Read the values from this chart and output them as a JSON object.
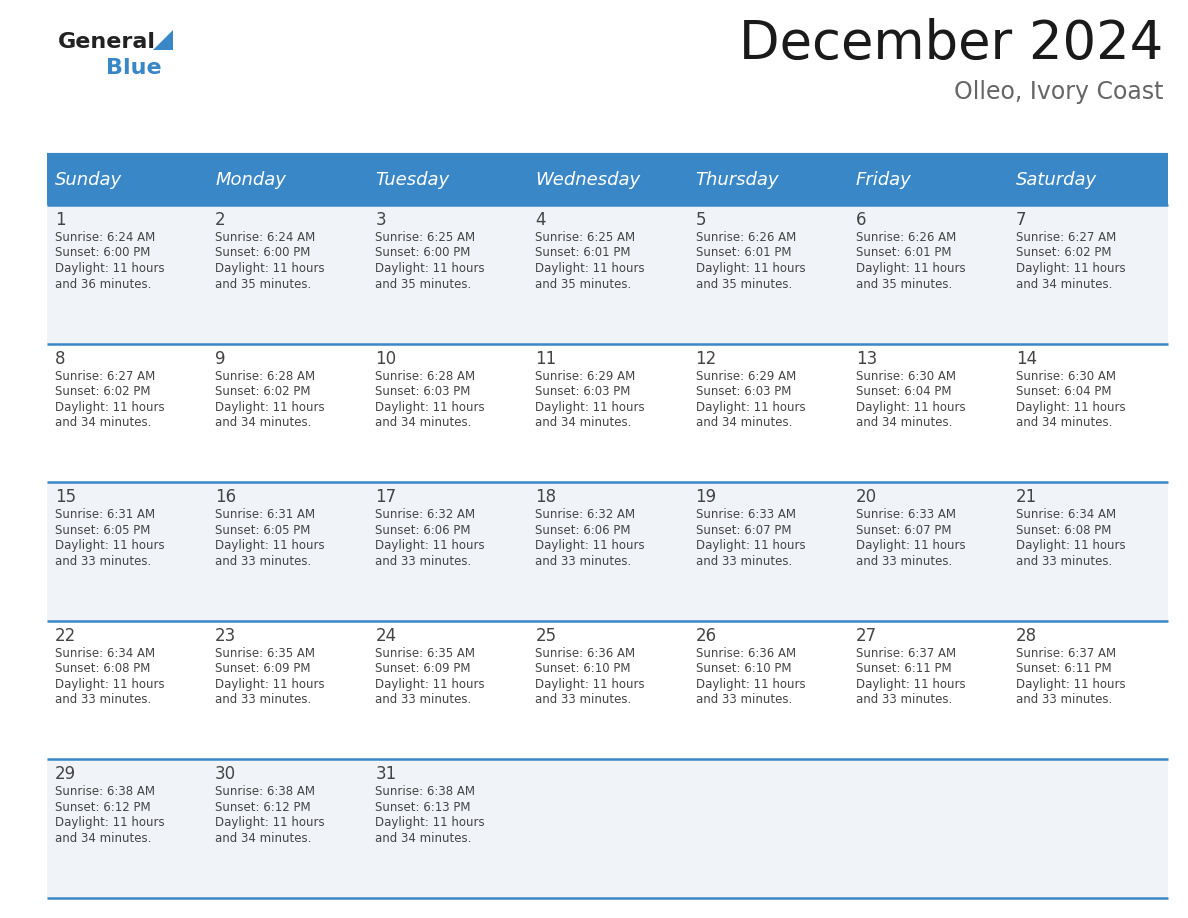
{
  "title": "December 2024",
  "subtitle": "Olleo, Ivory Coast",
  "days_of_week": [
    "Sunday",
    "Monday",
    "Tuesday",
    "Wednesday",
    "Thursday",
    "Friday",
    "Saturday"
  ],
  "header_bg": "#3a87c8",
  "header_text_color": "#FFFFFF",
  "cell_bg_odd": "#f0f4f8",
  "cell_bg_even": "#FFFFFF",
  "border_color": "#3a87c8",
  "text_color": "#444444",
  "title_color": "#1a1a1a",
  "subtitle_color": "#666666",
  "logo_general_color": "#222222",
  "logo_blue_color": "#3a87c8",
  "calendar_data": [
    [
      {
        "day": 1,
        "sunrise": "6:24 AM",
        "sunset": "6:00 PM",
        "daylight": "11 hours and 36 minutes."
      },
      {
        "day": 2,
        "sunrise": "6:24 AM",
        "sunset": "6:00 PM",
        "daylight": "11 hours and 35 minutes."
      },
      {
        "day": 3,
        "sunrise": "6:25 AM",
        "sunset": "6:00 PM",
        "daylight": "11 hours and 35 minutes."
      },
      {
        "day": 4,
        "sunrise": "6:25 AM",
        "sunset": "6:01 PM",
        "daylight": "11 hours and 35 minutes."
      },
      {
        "day": 5,
        "sunrise": "6:26 AM",
        "sunset": "6:01 PM",
        "daylight": "11 hours and 35 minutes."
      },
      {
        "day": 6,
        "sunrise": "6:26 AM",
        "sunset": "6:01 PM",
        "daylight": "11 hours and 35 minutes."
      },
      {
        "day": 7,
        "sunrise": "6:27 AM",
        "sunset": "6:02 PM",
        "daylight": "11 hours and 34 minutes."
      }
    ],
    [
      {
        "day": 8,
        "sunrise": "6:27 AM",
        "sunset": "6:02 PM",
        "daylight": "11 hours and 34 minutes."
      },
      {
        "day": 9,
        "sunrise": "6:28 AM",
        "sunset": "6:02 PM",
        "daylight": "11 hours and 34 minutes."
      },
      {
        "day": 10,
        "sunrise": "6:28 AM",
        "sunset": "6:03 PM",
        "daylight": "11 hours and 34 minutes."
      },
      {
        "day": 11,
        "sunrise": "6:29 AM",
        "sunset": "6:03 PM",
        "daylight": "11 hours and 34 minutes."
      },
      {
        "day": 12,
        "sunrise": "6:29 AM",
        "sunset": "6:03 PM",
        "daylight": "11 hours and 34 minutes."
      },
      {
        "day": 13,
        "sunrise": "6:30 AM",
        "sunset": "6:04 PM",
        "daylight": "11 hours and 34 minutes."
      },
      {
        "day": 14,
        "sunrise": "6:30 AM",
        "sunset": "6:04 PM",
        "daylight": "11 hours and 34 minutes."
      }
    ],
    [
      {
        "day": 15,
        "sunrise": "6:31 AM",
        "sunset": "6:05 PM",
        "daylight": "11 hours and 33 minutes."
      },
      {
        "day": 16,
        "sunrise": "6:31 AM",
        "sunset": "6:05 PM",
        "daylight": "11 hours and 33 minutes."
      },
      {
        "day": 17,
        "sunrise": "6:32 AM",
        "sunset": "6:06 PM",
        "daylight": "11 hours and 33 minutes."
      },
      {
        "day": 18,
        "sunrise": "6:32 AM",
        "sunset": "6:06 PM",
        "daylight": "11 hours and 33 minutes."
      },
      {
        "day": 19,
        "sunrise": "6:33 AM",
        "sunset": "6:07 PM",
        "daylight": "11 hours and 33 minutes."
      },
      {
        "day": 20,
        "sunrise": "6:33 AM",
        "sunset": "6:07 PM",
        "daylight": "11 hours and 33 minutes."
      },
      {
        "day": 21,
        "sunrise": "6:34 AM",
        "sunset": "6:08 PM",
        "daylight": "11 hours and 33 minutes."
      }
    ],
    [
      {
        "day": 22,
        "sunrise": "6:34 AM",
        "sunset": "6:08 PM",
        "daylight": "11 hours and 33 minutes."
      },
      {
        "day": 23,
        "sunrise": "6:35 AM",
        "sunset": "6:09 PM",
        "daylight": "11 hours and 33 minutes."
      },
      {
        "day": 24,
        "sunrise": "6:35 AM",
        "sunset": "6:09 PM",
        "daylight": "11 hours and 33 minutes."
      },
      {
        "day": 25,
        "sunrise": "6:36 AM",
        "sunset": "6:10 PM",
        "daylight": "11 hours and 33 minutes."
      },
      {
        "day": 26,
        "sunrise": "6:36 AM",
        "sunset": "6:10 PM",
        "daylight": "11 hours and 33 minutes."
      },
      {
        "day": 27,
        "sunrise": "6:37 AM",
        "sunset": "6:11 PM",
        "daylight": "11 hours and 33 minutes."
      },
      {
        "day": 28,
        "sunrise": "6:37 AM",
        "sunset": "6:11 PM",
        "daylight": "11 hours and 33 minutes."
      }
    ],
    [
      {
        "day": 29,
        "sunrise": "6:38 AM",
        "sunset": "6:12 PM",
        "daylight": "11 hours and 34 minutes."
      },
      {
        "day": 30,
        "sunrise": "6:38 AM",
        "sunset": "6:12 PM",
        "daylight": "11 hours and 34 minutes."
      },
      {
        "day": 31,
        "sunrise": "6:38 AM",
        "sunset": "6:13 PM",
        "daylight": "11 hours and 34 minutes."
      },
      null,
      null,
      null,
      null
    ]
  ]
}
